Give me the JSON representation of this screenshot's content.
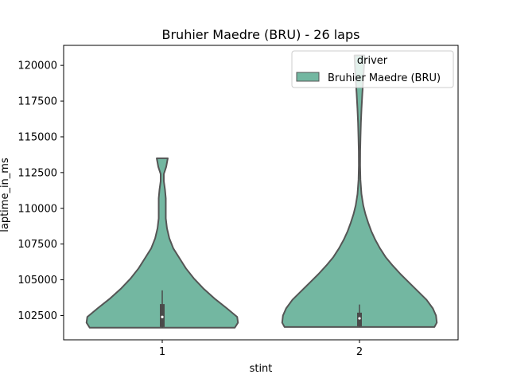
{
  "chart_data": {
    "type": "violin",
    "title": "Bruhier Maedre (BRU) - 26 laps",
    "xlabel": "stint",
    "ylabel": "laptime_in_ms",
    "categories": [
      "1",
      "2"
    ],
    "ylim": [
      100800,
      121400
    ],
    "yticks": [
      102500,
      105000,
      107500,
      110000,
      112500,
      115000,
      117500,
      120000
    ],
    "ytick_labels": [
      "102500",
      "105000",
      "107500",
      "110000",
      "112500",
      "115000",
      "117500",
      "120000"
    ],
    "legend": {
      "title": "driver",
      "placement": "top-right",
      "entries": [
        "Bruhier Maedre (BRU)"
      ]
    },
    "colors": {
      "fill": "#73b7a1",
      "outline": "#555555",
      "inner": "#4a4a4a"
    },
    "violins": [
      {
        "category": "1",
        "min": 101650,
        "max": 113500,
        "box": {
          "q1": 101700,
          "median": 102400,
          "q3": 103300
        },
        "profile": [
          [
            101650,
            0.92
          ],
          [
            102000,
            0.96
          ],
          [
            102400,
            0.95
          ],
          [
            103000,
            0.82
          ],
          [
            103700,
            0.66
          ],
          [
            104400,
            0.52
          ],
          [
            105100,
            0.4
          ],
          [
            105800,
            0.3
          ],
          [
            106500,
            0.22
          ],
          [
            107200,
            0.14
          ],
          [
            107900,
            0.09
          ],
          [
            108600,
            0.06
          ],
          [
            109300,
            0.045
          ],
          [
            110000,
            0.045
          ],
          [
            110700,
            0.045
          ],
          [
            111300,
            0.035
          ],
          [
            111900,
            0.02
          ],
          [
            112400,
            0.02
          ],
          [
            112900,
            0.05
          ],
          [
            113500,
            0.07
          ]
        ]
      },
      {
        "category": "2",
        "min": 101700,
        "max": 120700,
        "box": {
          "q1": 101750,
          "median": 102300,
          "q3": 102700
        },
        "profile": [
          [
            101700,
            0.95
          ],
          [
            102000,
            0.98
          ],
          [
            102500,
            0.97
          ],
          [
            103000,
            0.93
          ],
          [
            103600,
            0.85
          ],
          [
            104200,
            0.74
          ],
          [
            104800,
            0.63
          ],
          [
            105400,
            0.52
          ],
          [
            106000,
            0.42
          ],
          [
            106600,
            0.33
          ],
          [
            107200,
            0.26
          ],
          [
            107800,
            0.2
          ],
          [
            108400,
            0.15
          ],
          [
            109000,
            0.11
          ],
          [
            109600,
            0.075
          ],
          [
            110200,
            0.048
          ],
          [
            111000,
            0.025
          ],
          [
            112000,
            0.012
          ],
          [
            113000,
            0.008
          ],
          [
            114000,
            0.009
          ],
          [
            115000,
            0.013
          ],
          [
            116000,
            0.018
          ],
          [
            117000,
            0.026
          ],
          [
            118000,
            0.036
          ],
          [
            119000,
            0.048
          ],
          [
            120000,
            0.058
          ],
          [
            120700,
            0.063
          ]
        ]
      }
    ]
  }
}
